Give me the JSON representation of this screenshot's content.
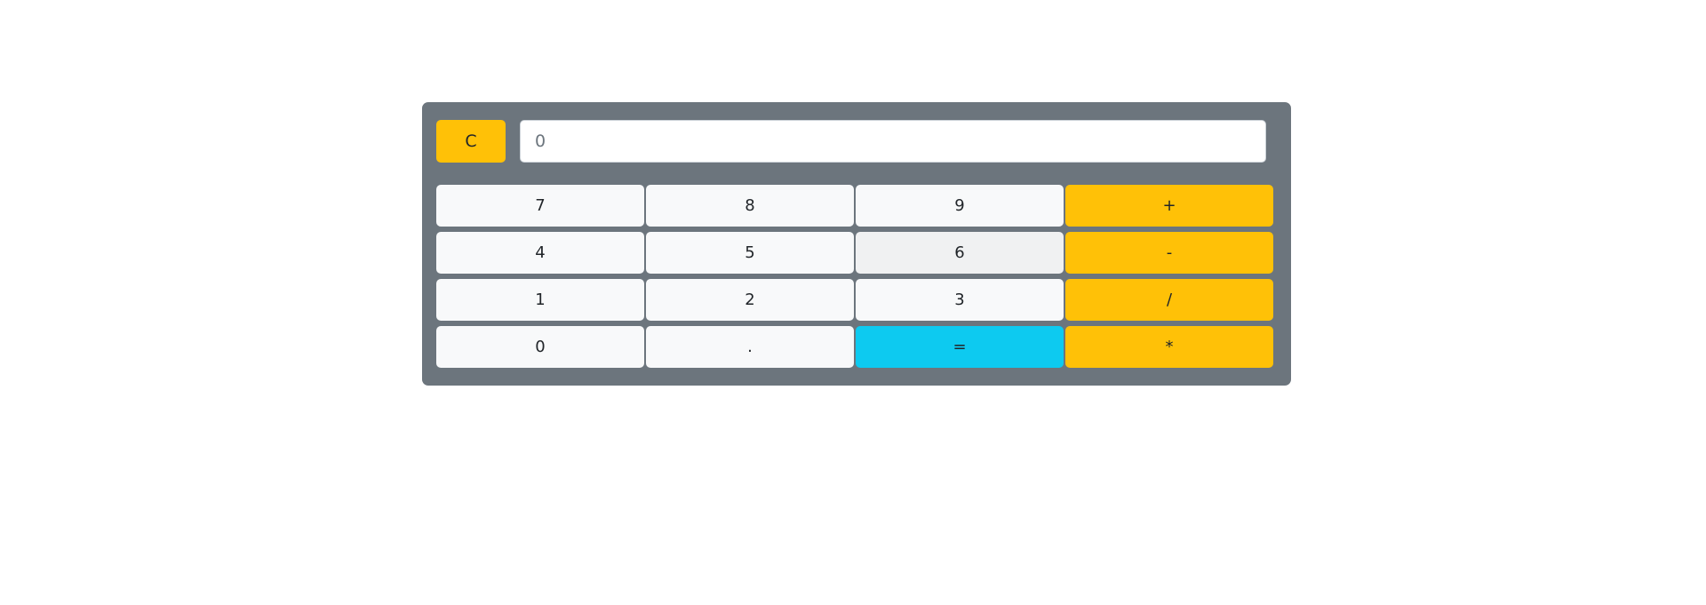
{
  "calculator": {
    "clear_label": "C",
    "display": {
      "value": "",
      "placeholder": "0"
    },
    "keys": [
      {
        "label": "7",
        "style": "light"
      },
      {
        "label": "8",
        "style": "light"
      },
      {
        "label": "9",
        "style": "light"
      },
      {
        "label": "+",
        "style": "warning"
      },
      {
        "label": "4",
        "style": "light"
      },
      {
        "label": "5",
        "style": "light"
      },
      {
        "label": "6",
        "style": "light-hover"
      },
      {
        "label": "-",
        "style": "warning"
      },
      {
        "label": "1",
        "style": "light"
      },
      {
        "label": "2",
        "style": "light"
      },
      {
        "label": "3",
        "style": "light"
      },
      {
        "label": "/",
        "style": "warning"
      },
      {
        "label": "0",
        "style": "light"
      },
      {
        "label": ".",
        "style": "light"
      },
      {
        "label": "=",
        "style": "info"
      },
      {
        "label": "*",
        "style": "warning"
      }
    ]
  },
  "colors": {
    "panel": "#6c757d",
    "warning": "#ffc107",
    "info": "#0dcaf0",
    "light": "#f8f9fa"
  }
}
